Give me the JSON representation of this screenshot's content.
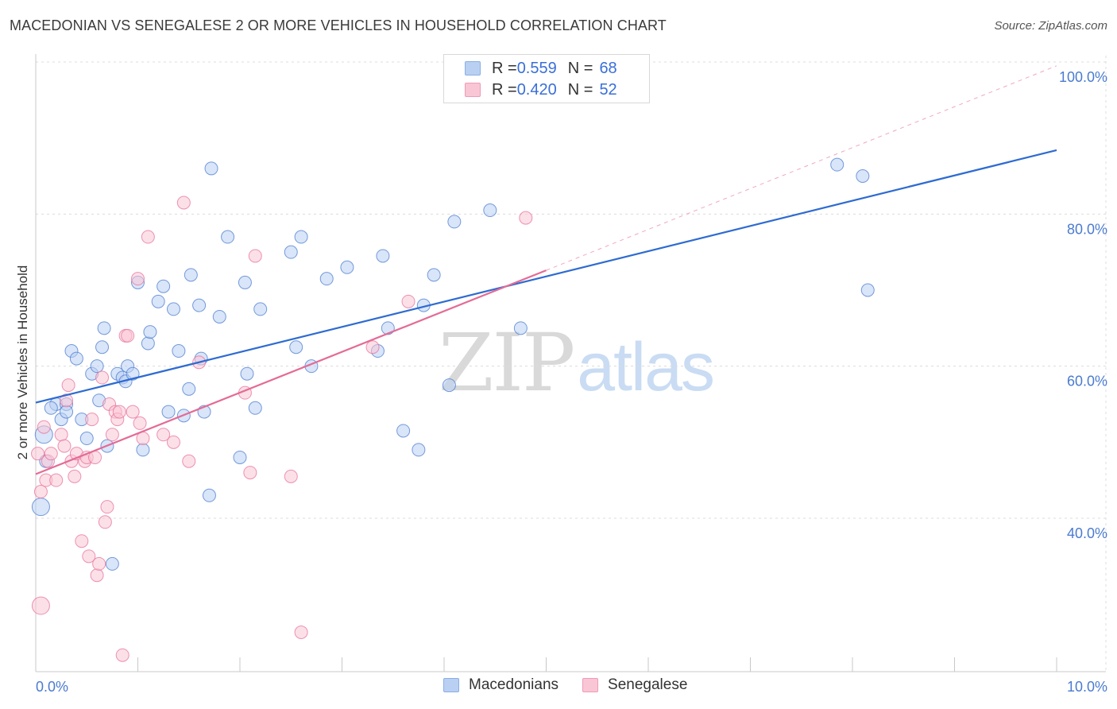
{
  "header": {
    "title": "MACEDONIAN VS SENEGALESE 2 OR MORE VEHICLES IN HOUSEHOLD CORRELATION CHART",
    "source": "Source: ZipAtlas.com"
  },
  "watermark": {
    "zip": "ZIP",
    "atlas": "atlas"
  },
  "legend": {
    "rows": [
      {
        "r_label": "R = ",
        "r_value": "0.559",
        "n_label": "N = ",
        "n_value": "68",
        "color": "#b9d0f2"
      },
      {
        "r_label": "R = ",
        "r_value": "0.420",
        "n_label": "N = ",
        "n_value": "52",
        "color": "#f9c6d6"
      }
    ]
  },
  "chart_data": {
    "type": "scatter",
    "title": "MACEDONIAN VS SENEGALESE 2 OR MORE VEHICLES IN HOUSEHOLD CORRELATION CHART",
    "xlabel": "",
    "ylabel": "2 or more Vehicles in Household",
    "xlim": [
      0,
      10
    ],
    "ylim": [
      20,
      100
    ],
    "x_tick_labels": [
      "0.0%",
      "10.0%"
    ],
    "y_ticks": [
      40,
      60,
      80,
      100
    ],
    "y_tick_labels": [
      "40.0%",
      "60.0%",
      "80.0%",
      "100.0%"
    ],
    "grid": true,
    "legend_position": "top-center",
    "series": [
      {
        "name": "Macedonians",
        "color": "#4a7bd0",
        "fill": "#b9d0f2",
        "trend": {
          "x": [
            0,
            10
          ],
          "y": [
            55.2,
            88.4
          ],
          "color": "#2e6bd1"
        },
        "points": [
          [
            0.08,
            51.0
          ],
          [
            0.05,
            41.5
          ],
          [
            0.1,
            47.5
          ],
          [
            0.2,
            55.0
          ],
          [
            0.25,
            53.0
          ],
          [
            0.3,
            55.0
          ],
          [
            0.35,
            62.0
          ],
          [
            0.4,
            61.0
          ],
          [
            0.45,
            53.0
          ],
          [
            0.5,
            50.5
          ],
          [
            0.55,
            59.0
          ],
          [
            0.6,
            60.0
          ],
          [
            0.62,
            55.5
          ],
          [
            0.65,
            62.5
          ],
          [
            0.67,
            65.0
          ],
          [
            0.7,
            49.5
          ],
          [
            0.75,
            34.0
          ],
          [
            0.8,
            59.0
          ],
          [
            0.85,
            58.5
          ],
          [
            0.88,
            58.0
          ],
          [
            0.9,
            60.0
          ],
          [
            0.95,
            59.0
          ],
          [
            1.0,
            71.0
          ],
          [
            1.05,
            49.0
          ],
          [
            1.1,
            63.0
          ],
          [
            1.12,
            64.5
          ],
          [
            1.2,
            68.5
          ],
          [
            1.25,
            70.5
          ],
          [
            1.3,
            54.0
          ],
          [
            1.35,
            67.5
          ],
          [
            1.4,
            62.0
          ],
          [
            1.45,
            53.5
          ],
          [
            1.5,
            57.0
          ],
          [
            1.52,
            72.0
          ],
          [
            1.6,
            68.0
          ],
          [
            1.62,
            61.0
          ],
          [
            1.65,
            54.0
          ],
          [
            1.7,
            43.0
          ],
          [
            1.72,
            86.0
          ],
          [
            1.8,
            66.5
          ],
          [
            1.88,
            77.0
          ],
          [
            2.0,
            48.0
          ],
          [
            2.05,
            71.0
          ],
          [
            2.07,
            59.0
          ],
          [
            2.15,
            54.5
          ],
          [
            2.2,
            67.5
          ],
          [
            2.5,
            75.0
          ],
          [
            2.55,
            62.5
          ],
          [
            2.6,
            77.0
          ],
          [
            2.7,
            60.0
          ],
          [
            2.85,
            71.5
          ],
          [
            3.05,
            73.0
          ],
          [
            3.35,
            62.0
          ],
          [
            3.4,
            74.5
          ],
          [
            3.45,
            65.0
          ],
          [
            3.6,
            51.5
          ],
          [
            3.75,
            49.0
          ],
          [
            3.8,
            68.0
          ],
          [
            3.9,
            72.0
          ],
          [
            4.05,
            57.5
          ],
          [
            4.1,
            79.0
          ],
          [
            4.45,
            80.5
          ],
          [
            4.75,
            65.0
          ],
          [
            7.85,
            86.5
          ],
          [
            8.1,
            85.0
          ],
          [
            8.15,
            70.0
          ],
          [
            0.15,
            54.5
          ],
          [
            0.3,
            54.0
          ]
        ]
      },
      {
        "name": "Senegalese",
        "color": "#e8709a",
        "fill": "#f9c6d6",
        "trend": {
          "x": [
            0,
            5
          ],
          "y": [
            45.8,
            72.6
          ],
          "color": "#e46b95"
        },
        "trend_dashed": {
          "x": [
            5,
            10
          ],
          "y": [
            72.6,
            99.5
          ]
        },
        "points": [
          [
            0.02,
            48.5
          ],
          [
            0.05,
            43.5
          ],
          [
            0.08,
            52.0
          ],
          [
            0.1,
            45.0
          ],
          [
            0.12,
            47.5
          ],
          [
            0.15,
            48.5
          ],
          [
            0.2,
            45.0
          ],
          [
            0.25,
            51.0
          ],
          [
            0.28,
            49.5
          ],
          [
            0.3,
            55.5
          ],
          [
            0.32,
            57.5
          ],
          [
            0.35,
            47.5
          ],
          [
            0.38,
            45.5
          ],
          [
            0.4,
            48.5
          ],
          [
            0.45,
            37.0
          ],
          [
            0.48,
            47.5
          ],
          [
            0.5,
            48.0
          ],
          [
            0.52,
            35.0
          ],
          [
            0.55,
            53.0
          ],
          [
            0.58,
            48.0
          ],
          [
            0.6,
            32.5
          ],
          [
            0.62,
            34.0
          ],
          [
            0.65,
            58.5
          ],
          [
            0.68,
            39.5
          ],
          [
            0.7,
            41.5
          ],
          [
            0.72,
            55.0
          ],
          [
            0.75,
            51.0
          ],
          [
            0.78,
            54.0
          ],
          [
            0.8,
            53.0
          ],
          [
            0.82,
            54.0
          ],
          [
            0.85,
            22.0
          ],
          [
            0.88,
            64.0
          ],
          [
            0.9,
            64.0
          ],
          [
            0.95,
            54.0
          ],
          [
            1.0,
            71.5
          ],
          [
            1.02,
            52.5
          ],
          [
            1.05,
            50.5
          ],
          [
            1.1,
            77.0
          ],
          [
            1.25,
            51.0
          ],
          [
            1.35,
            50.0
          ],
          [
            1.45,
            81.5
          ],
          [
            1.5,
            47.5
          ],
          [
            1.6,
            60.5
          ],
          [
            2.05,
            56.5
          ],
          [
            2.1,
            46.0
          ],
          [
            2.15,
            74.5
          ],
          [
            2.5,
            45.5
          ],
          [
            2.6,
            25.0
          ],
          [
            3.3,
            62.5
          ],
          [
            3.65,
            68.5
          ],
          [
            4.8,
            79.5
          ],
          [
            0.05,
            28.5
          ]
        ]
      }
    ]
  },
  "axes": {
    "x_left_label": "0.0%",
    "x_right_label": "10.0%",
    "y_labels": [
      "40.0%",
      "60.0%",
      "80.0%",
      "100.0%"
    ],
    "y_axis_title": "2 or more Vehicles in Household"
  },
  "bottom_legend": {
    "items": [
      {
        "label": "Macedonians",
        "color": "#b9d0f2"
      },
      {
        "label": "Senegalese",
        "color": "#f9c6d6"
      }
    ]
  }
}
